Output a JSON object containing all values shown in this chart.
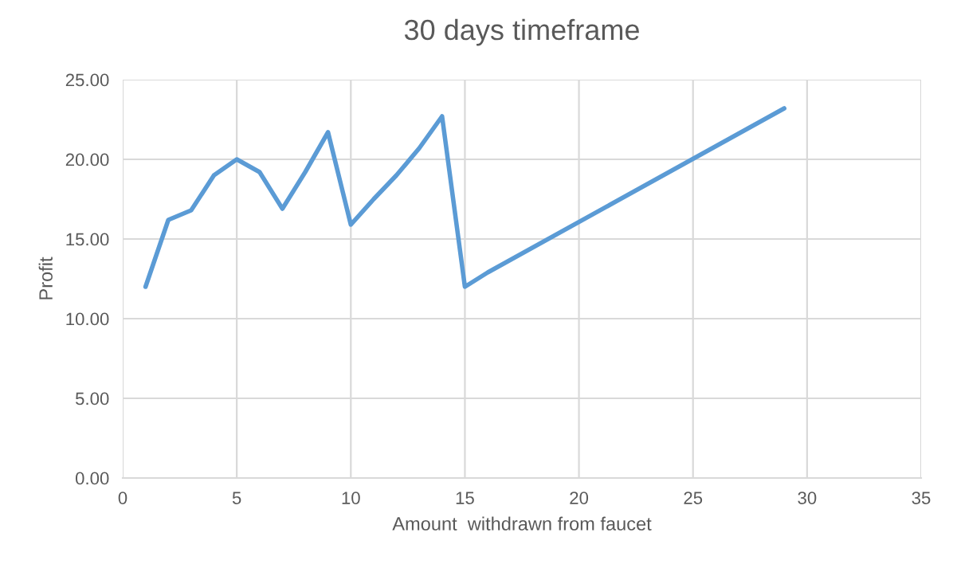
{
  "chart_data": {
    "type": "line",
    "title": "30 days timeframe",
    "xlabel": "Amount  withdrawn from faucet",
    "ylabel": "Profit",
    "series": [
      {
        "color": "#5b9bd5",
        "x": [
          1,
          2,
          3,
          4,
          5,
          6,
          7,
          8,
          9,
          10,
          11,
          12,
          13,
          14,
          15,
          16,
          29
        ],
        "values": [
          12.0,
          16.2,
          16.8,
          19.0,
          20.0,
          19.2,
          16.9,
          19.2,
          21.7,
          15.9,
          17.5,
          19.0,
          20.7,
          22.7,
          12.0,
          12.9,
          23.2
        ]
      }
    ],
    "xlim": [
      0,
      35
    ],
    "xticks": [
      0,
      5,
      10,
      15,
      20,
      25,
      30,
      35
    ],
    "ylim": [
      0,
      25
    ],
    "yticks": [
      {
        "value": 0,
        "label": "0.00"
      },
      {
        "value": 5,
        "label": "5.00"
      },
      {
        "value": 10,
        "label": "10.00"
      },
      {
        "value": 15,
        "label": "15.00"
      },
      {
        "value": 20,
        "label": "20.00"
      },
      {
        "value": 25,
        "label": "25.00"
      }
    ],
    "grid": true,
    "legend": false,
    "marker": "none",
    "line_style": "solid"
  }
}
